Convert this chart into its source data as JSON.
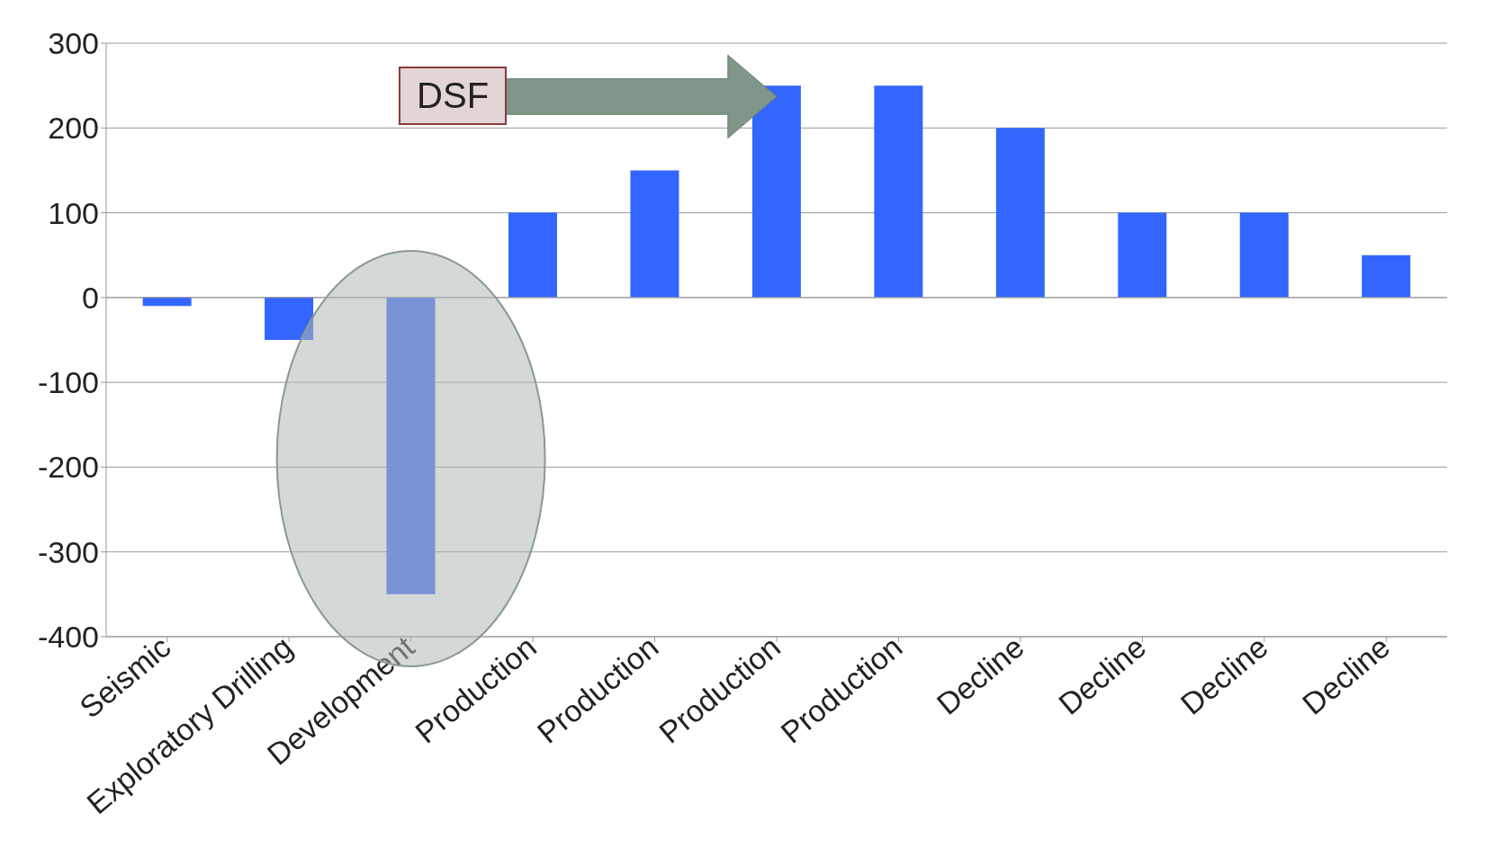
{
  "chart_data": {
    "type": "bar",
    "categories": [
      "Seismic",
      "Exploratory Drilling",
      "Development",
      "Production",
      "Production",
      "Production",
      "Production",
      "Decline",
      "Decline",
      "Decline",
      "Decline"
    ],
    "values": [
      -10,
      -50,
      -350,
      100,
      150,
      250,
      250,
      200,
      100,
      100,
      50
    ],
    "color": "#3366ff",
    "ylim": [
      -400,
      300
    ],
    "yticks": [
      -400,
      -300,
      -200,
      -100,
      0,
      100,
      200,
      300
    ],
    "grid": "y",
    "annotations": [
      "DSF"
    ]
  }
}
